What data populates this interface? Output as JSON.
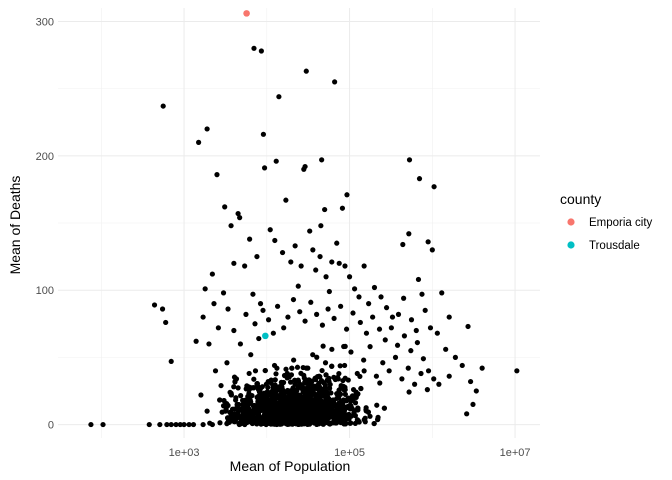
{
  "chart_data": {
    "type": "scatter",
    "xscale": "log",
    "xlabel": "Mean of Population",
    "ylabel": "Mean of Deaths",
    "xlim": [
      30,
      20000000
    ],
    "ylim": [
      -10,
      310
    ],
    "x_ticks": [
      {
        "value": 1000,
        "label": "1e+03"
      },
      {
        "value": 100000,
        "label": "1e+05"
      },
      {
        "value": 10000000,
        "label": "1e+07"
      }
    ],
    "y_ticks": [
      {
        "value": 0,
        "label": "0"
      },
      {
        "value": 100,
        "label": "100"
      },
      {
        "value": 200,
        "label": "200"
      },
      {
        "value": 300,
        "label": "300"
      }
    ],
    "grid": true,
    "legend": {
      "title": "county",
      "placement": "right",
      "entries": [
        {
          "name": "Emporia city",
          "color": "#F8766D"
        },
        {
          "name": "Trousdale",
          "color": "#00BFC4"
        }
      ]
    },
    "default_point_color": "#000000",
    "series": [
      {
        "name": "Emporia city",
        "color": "#F8766D",
        "points": [
          [
            5700,
            306
          ]
        ]
      },
      {
        "name": "Trousdale",
        "color": "#00BFC4",
        "points": [
          [
            9600,
            66
          ]
        ]
      }
    ],
    "other_points": [
      [
        75,
        0
      ],
      [
        105,
        0
      ],
      [
        380,
        0
      ],
      [
        510,
        0
      ],
      [
        620,
        0
      ],
      [
        700,
        0
      ],
      [
        800,
        0
      ],
      [
        900,
        0
      ],
      [
        1000,
        0
      ],
      [
        1150,
        0
      ],
      [
        1300,
        0
      ],
      [
        1700,
        0
      ],
      [
        2200,
        0
      ],
      [
        440,
        89
      ],
      [
        550,
        86
      ],
      [
        600,
        76
      ],
      [
        700,
        47
      ],
      [
        560,
        237
      ],
      [
        1500,
        210
      ],
      [
        1900,
        220
      ],
      [
        2500,
        186
      ],
      [
        3100,
        162
      ],
      [
        4500,
        157
      ],
      [
        4700,
        154
      ],
      [
        7000,
        280
      ],
      [
        8600,
        278
      ],
      [
        14000,
        244
      ],
      [
        30000,
        263
      ],
      [
        66000,
        255
      ],
      [
        9100,
        216
      ],
      [
        13000,
        196
      ],
      [
        9400,
        191
      ],
      [
        28000,
        190
      ],
      [
        29000,
        192
      ],
      [
        46000,
        197
      ],
      [
        17000,
        167
      ],
      [
        45000,
        148
      ],
      [
        50000,
        160
      ],
      [
        93000,
        171
      ],
      [
        82000,
        161
      ],
      [
        530000,
        197
      ],
      [
        700000,
        183
      ],
      [
        1050000,
        177
      ],
      [
        520000,
        142
      ],
      [
        440000,
        134
      ],
      [
        890000,
        136
      ],
      [
        1000000,
        130
      ],
      [
        680000,
        108
      ],
      [
        750000,
        97
      ],
      [
        1300000,
        98
      ],
      [
        1600000,
        80
      ],
      [
        2700000,
        73
      ],
      [
        4000000,
        42
      ],
      [
        10500000,
        40
      ],
      [
        1800,
        101
      ],
      [
        2200,
        112
      ],
      [
        2600,
        72
      ],
      [
        3000,
        98
      ],
      [
        3400,
        86
      ],
      [
        4000,
        120
      ],
      [
        2000,
        60
      ],
      [
        2400,
        40
      ],
      [
        2800,
        29
      ],
      [
        3300,
        46
      ],
      [
        1600,
        22
      ],
      [
        1900,
        10
      ],
      [
        1400,
        62
      ],
      [
        1700,
        80
      ],
      [
        2300,
        90
      ],
      [
        3700,
        148
      ],
      [
        5400,
        118
      ],
      [
        6200,
        138
      ],
      [
        6800,
        97
      ],
      [
        7600,
        125
      ],
      [
        8400,
        90
      ],
      [
        11000,
        145
      ],
      [
        12500,
        137
      ],
      [
        15500,
        128
      ],
      [
        19500,
        121
      ],
      [
        22000,
        133
      ],
      [
        24000,
        103
      ],
      [
        26000,
        118
      ],
      [
        33000,
        144
      ],
      [
        36000,
        130
      ],
      [
        39000,
        115
      ],
      [
        44000,
        125
      ],
      [
        52000,
        110
      ],
      [
        57000,
        99
      ],
      [
        61000,
        121
      ],
      [
        70000,
        135
      ],
      [
        75000,
        120
      ],
      [
        88000,
        118
      ],
      [
        100000,
        110
      ],
      [
        115000,
        101
      ],
      [
        130000,
        95
      ],
      [
        150000,
        118
      ],
      [
        170000,
        90
      ],
      [
        200000,
        102
      ],
      [
        240000,
        95
      ],
      [
        280000,
        87
      ],
      [
        330000,
        80
      ],
      [
        390000,
        82
      ],
      [
        450000,
        94
      ],
      [
        560000,
        78
      ],
      [
        640000,
        70
      ],
      [
        820000,
        85
      ],
      [
        950000,
        72
      ],
      [
        1150000,
        68
      ],
      [
        1450000,
        56
      ],
      [
        1900000,
        50
      ],
      [
        2300000,
        44
      ],
      [
        2900000,
        32
      ],
      [
        3400000,
        25
      ],
      [
        2600000,
        8
      ],
      [
        3100000,
        15
      ],
      [
        1200000,
        30
      ],
      [
        1600000,
        36
      ],
      [
        900000,
        40
      ],
      [
        4000,
        70
      ],
      [
        4800,
        60
      ],
      [
        5600,
        82
      ],
      [
        6400,
        52
      ],
      [
        7200,
        75
      ],
      [
        8000,
        64
      ],
      [
        9000,
        85
      ],
      [
        10500,
        78
      ],
      [
        12000,
        68
      ],
      [
        13500,
        88
      ],
      [
        16000,
        72
      ],
      [
        18000,
        80
      ],
      [
        21000,
        93
      ],
      [
        25000,
        84
      ],
      [
        29000,
        77
      ],
      [
        34000,
        91
      ],
      [
        40000,
        82
      ],
      [
        47000,
        74
      ],
      [
        55000,
        86
      ],
      [
        65000,
        79
      ],
      [
        78000,
        88
      ],
      [
        92000,
        71
      ],
      [
        110000,
        83
      ],
      [
        135000,
        76
      ],
      [
        160000,
        68
      ],
      [
        190000,
        80
      ],
      [
        230000,
        71
      ],
      [
        270000,
        63
      ],
      [
        320000,
        72
      ],
      [
        380000,
        59
      ],
      [
        460000,
        66
      ],
      [
        550000,
        55
      ],
      [
        660000,
        61
      ],
      [
        780000,
        49
      ],
      [
        3000,
        14
      ],
      [
        3600,
        24
      ],
      [
        4300,
        34
      ],
      [
        5100,
        18
      ],
      [
        6100,
        28
      ],
      [
        7300,
        40
      ],
      [
        8700,
        22
      ],
      [
        10400,
        32
      ],
      [
        12400,
        44
      ],
      [
        14800,
        26
      ],
      [
        17700,
        38
      ],
      [
        21100,
        48
      ],
      [
        25200,
        30
      ],
      [
        30100,
        42
      ],
      [
        35900,
        52
      ],
      [
        42900,
        36
      ],
      [
        51200,
        46
      ],
      [
        61100,
        56
      ],
      [
        73000,
        34
      ],
      [
        87100,
        44
      ],
      [
        104000,
        54
      ],
      [
        124000,
        38
      ],
      [
        148000,
        48
      ],
      [
        177000,
        58
      ],
      [
        211000,
        36
      ],
      [
        252000,
        46
      ],
      [
        301000,
        40
      ],
      [
        359000,
        50
      ],
      [
        429000,
        34
      ],
      [
        512000,
        42
      ],
      [
        611000,
        30
      ],
      [
        730000,
        38
      ],
      [
        871000,
        26
      ],
      [
        1040000,
        34
      ]
    ]
  }
}
